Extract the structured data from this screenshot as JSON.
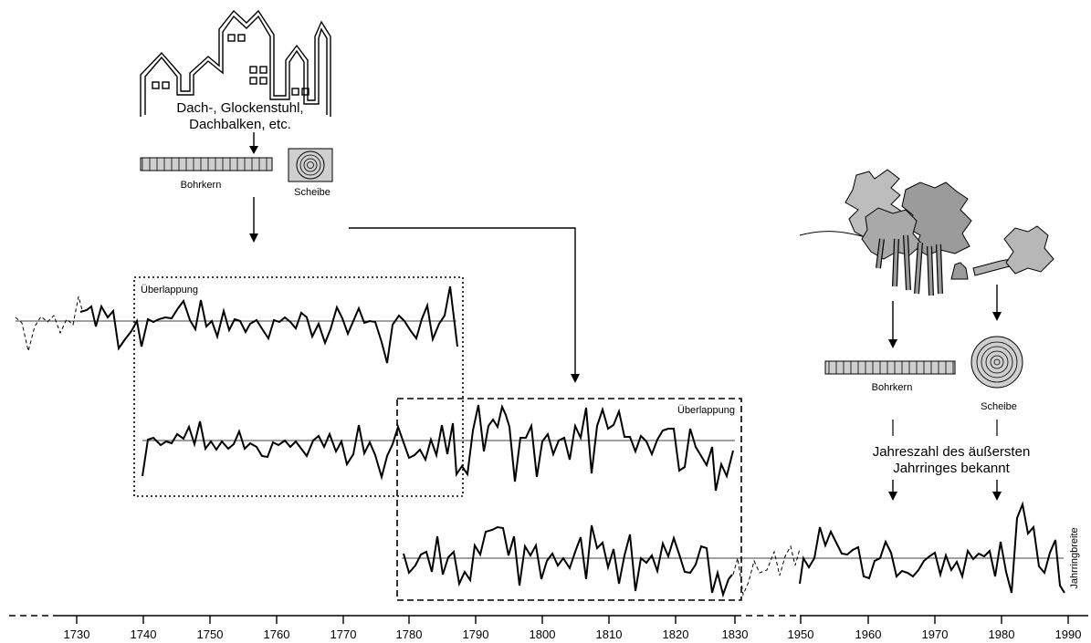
{
  "labels": {
    "building": [
      "Dach-, Glockenstuhl,",
      "Dachbalken, etc."
    ],
    "bohrkern_left": "Bohrkern",
    "scheibe_left": "Scheibe",
    "overlap_1": "Überlappung",
    "overlap_2": "Überlappung",
    "bohrkern_right": "Bohrkern",
    "scheibe_right": "Scheibe",
    "known_year": [
      "Jahreszahl des äußersten",
      "Jahrringes bekannt"
    ],
    "vertical_axis": "Jahrringbreite"
  },
  "axis": {
    "ticks": [
      "1730",
      "1740",
      "1750",
      "1760",
      "1770",
      "1780",
      "1790",
      "1800",
      "1810",
      "1820",
      "1830",
      "1950",
      "1960",
      "1970",
      "1980",
      "1990"
    ]
  },
  "icons": [
    "building-icon",
    "core-sample-icon",
    "wood-disc-icon",
    "trees-icon",
    "tree-stump-icon",
    "felled-tree-icon"
  ],
  "colors": {
    "ink": "#000000",
    "sample_fill": "#cfcfcf",
    "tree_fill": "#a7a7a7"
  }
}
